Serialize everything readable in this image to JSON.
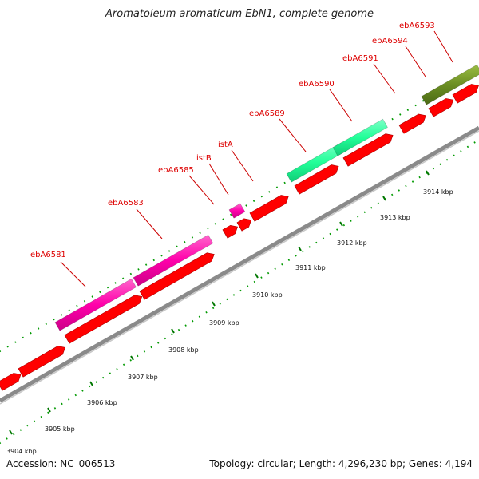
{
  "title": "Aromatoleum aromaticum EbN1, complete genome",
  "footer": {
    "accession": "Accession: NC_006513",
    "summary": "Topology: circular; Length: 4,296,230 bp; Genes: 4,194"
  },
  "ticks": [
    {
      "label": "3904 kbp",
      "pos": 3904
    },
    {
      "label": "3905 kbp",
      "pos": 3905
    },
    {
      "label": "3906 kbp",
      "pos": 3906
    },
    {
      "label": "3907 kbp",
      "pos": 3907
    },
    {
      "label": "3908 kbp",
      "pos": 3908
    },
    {
      "label": "3909 kbp",
      "pos": 3909
    },
    {
      "label": "3910 kbp",
      "pos": 3910
    },
    {
      "label": "3911 kbp",
      "pos": 3911
    },
    {
      "label": "3912 kbp",
      "pos": 3912
    },
    {
      "label": "3913 kbp",
      "pos": 3913
    },
    {
      "label": "3914 kbp",
      "pos": 3914
    }
  ],
  "labeled_genes": [
    {
      "label": "ebA6581",
      "color": "#ff20a0"
    },
    {
      "label": "ebA6583",
      "color": "#ff20a0"
    },
    {
      "label": "ebA6585",
      "color": "#ff20a0"
    },
    {
      "label": "istB",
      "color": "#ff20a0"
    },
    {
      "label": "istA",
      "color": "#ff20a0"
    },
    {
      "label": "ebA6589",
      "color": "#22ff99"
    },
    {
      "label": "ebA6590",
      "color": "#22ff99"
    },
    {
      "label": "ebA6591",
      "color": "#6b8e23"
    },
    {
      "label": "ebA6594",
      "color": "#6b8e23"
    },
    {
      "label": "ebA6593",
      "color": "#6b8e23"
    }
  ],
  "colors": {
    "label_text": "#dd0000",
    "cds_arrow": "#ff0000",
    "backbone": "#808080",
    "tick_green": "#008800",
    "pink_feature": "#ff20b0",
    "teal_feature": "#22ff99",
    "olive_feature": "#6b8e23"
  }
}
